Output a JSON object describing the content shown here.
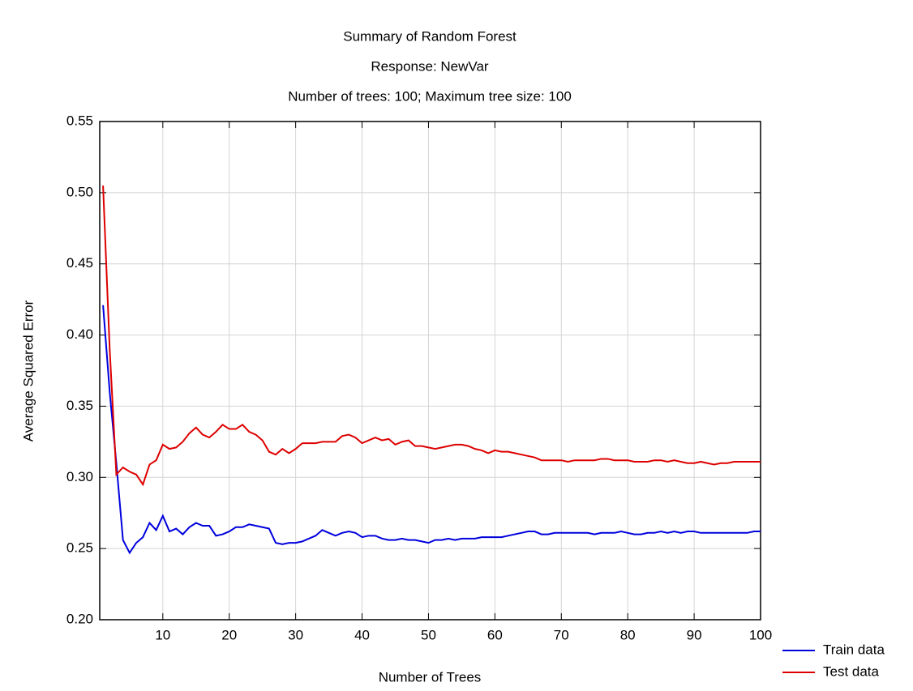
{
  "chart_data": {
    "type": "line",
    "title": "Summary of Random Forest",
    "subtitle": [
      "Response: NewVar",
      "Number of trees: 100; Maximum tree size: 100"
    ],
    "xlabel": "Number of Trees",
    "ylabel": "Average Squared Error",
    "x": [
      1,
      2,
      3,
      4,
      5,
      6,
      7,
      8,
      9,
      10,
      11,
      12,
      13,
      14,
      15,
      16,
      17,
      18,
      19,
      20,
      21,
      22,
      23,
      24,
      25,
      26,
      27,
      28,
      29,
      30,
      31,
      32,
      33,
      34,
      35,
      36,
      37,
      38,
      39,
      40,
      41,
      42,
      43,
      44,
      45,
      46,
      47,
      48,
      49,
      50,
      51,
      52,
      53,
      54,
      55,
      56,
      57,
      58,
      59,
      60,
      61,
      62,
      63,
      64,
      65,
      66,
      67,
      68,
      69,
      70,
      71,
      72,
      73,
      74,
      75,
      76,
      77,
      78,
      79,
      80,
      81,
      82,
      83,
      84,
      85,
      86,
      87,
      88,
      89,
      90,
      91,
      92,
      93,
      94,
      95,
      96,
      97,
      98,
      99,
      100
    ],
    "series": [
      {
        "name": "Train data",
        "color": "#0000dd",
        "values": [
          0.421,
          0.36,
          0.31,
          0.256,
          0.247,
          0.254,
          0.258,
          0.268,
          0.263,
          0.273,
          0.262,
          0.264,
          0.26,
          0.265,
          0.268,
          0.266,
          0.266,
          0.259,
          0.26,
          0.262,
          0.265,
          0.265,
          0.267,
          0.266,
          0.265,
          0.264,
          0.254,
          0.253,
          0.254,
          0.254,
          0.255,
          0.257,
          0.259,
          0.263,
          0.261,
          0.259,
          0.261,
          0.262,
          0.261,
          0.258,
          0.259,
          0.259,
          0.257,
          0.256,
          0.256,
          0.257,
          0.256,
          0.256,
          0.255,
          0.254,
          0.256,
          0.256,
          0.257,
          0.256,
          0.257,
          0.257,
          0.257,
          0.258,
          0.258,
          0.258,
          0.258,
          0.259,
          0.26,
          0.261,
          0.262,
          0.262,
          0.26,
          0.26,
          0.261,
          0.261,
          0.261,
          0.261,
          0.261,
          0.261,
          0.26,
          0.261,
          0.261,
          0.261,
          0.262,
          0.261,
          0.26,
          0.26,
          0.261,
          0.261,
          0.262,
          0.261,
          0.262,
          0.261,
          0.262,
          0.262,
          0.261,
          0.261,
          0.261,
          0.261,
          0.261,
          0.261,
          0.261,
          0.261,
          0.262,
          0.262
        ]
      },
      {
        "name": "Test data",
        "color": "#dd0000",
        "values": [
          0.505,
          0.39,
          0.302,
          0.307,
          0.304,
          0.302,
          0.295,
          0.309,
          0.312,
          0.323,
          0.32,
          0.321,
          0.325,
          0.331,
          0.335,
          0.33,
          0.328,
          0.332,
          0.337,
          0.334,
          0.334,
          0.337,
          0.332,
          0.33,
          0.326,
          0.318,
          0.316,
          0.32,
          0.317,
          0.32,
          0.324,
          0.324,
          0.324,
          0.325,
          0.325,
          0.325,
          0.329,
          0.33,
          0.328,
          0.324,
          0.326,
          0.328,
          0.326,
          0.327,
          0.323,
          0.325,
          0.326,
          0.322,
          0.322,
          0.321,
          0.32,
          0.321,
          0.322,
          0.323,
          0.323,
          0.322,
          0.32,
          0.319,
          0.317,
          0.319,
          0.318,
          0.318,
          0.317,
          0.316,
          0.315,
          0.314,
          0.312,
          0.312,
          0.312,
          0.312,
          0.311,
          0.312,
          0.312,
          0.312,
          0.312,
          0.313,
          0.313,
          0.312,
          0.312,
          0.312,
          0.311,
          0.311,
          0.311,
          0.312,
          0.312,
          0.311,
          0.312,
          0.311,
          0.31,
          0.31,
          0.311,
          0.31,
          0.309,
          0.31,
          0.31,
          0.311,
          0.311,
          0.311,
          0.311,
          0.311
        ]
      }
    ],
    "xlim": [
      0.5,
      100
    ],
    "xticks": [
      10,
      20,
      30,
      40,
      50,
      60,
      70,
      80,
      90,
      100
    ],
    "ylim": [
      0.2,
      0.55
    ],
    "yticks": [
      {
        "value": 0.2,
        "label": "0.20"
      },
      0.25,
      {
        "value": 0.3,
        "label": "0.30"
      },
      0.35,
      {
        "value": 0.4,
        "label": "0.40"
      },
      0.45,
      {
        "value": 0.5,
        "label": "0.50"
      },
      0.55
    ],
    "grid": true,
    "legend": "lower right"
  }
}
